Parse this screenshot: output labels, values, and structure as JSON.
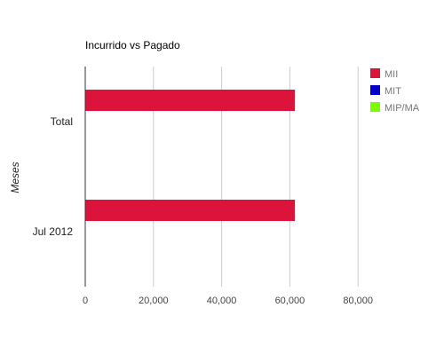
{
  "chart_data": {
    "type": "bar",
    "orientation": "horizontal",
    "title": "Incurrido vs Pagado",
    "ylabel": "Meses",
    "xlabel": "",
    "categories": [
      "Total",
      "Jul 2012"
    ],
    "series": [
      {
        "name": "MII",
        "color": "#dc143c",
        "values": [
          61500,
          61500
        ]
      },
      {
        "name": "MIT",
        "color": "#0000cd",
        "values": [
          0,
          0
        ]
      },
      {
        "name": "MIP/MA",
        "color": "#7cfc00",
        "values": [
          0,
          0
        ]
      }
    ],
    "xlim": [
      0,
      100000
    ],
    "xticks": [
      "0",
      "20,000",
      "40,000",
      "60,000",
      "80,000"
    ],
    "xtick_values": [
      0,
      20000,
      40000,
      60000,
      80000
    ],
    "grid": true,
    "legend_position": "right"
  }
}
